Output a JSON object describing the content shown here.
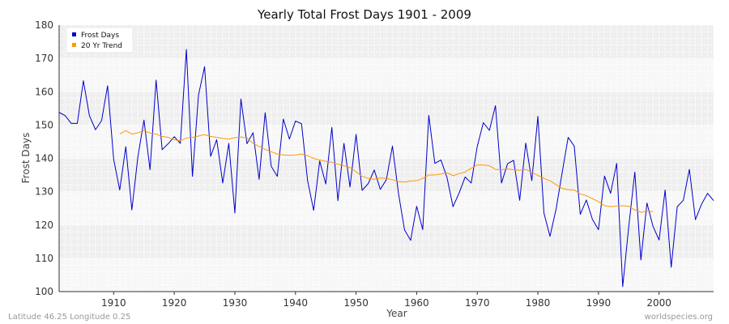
{
  "chart_data": {
    "type": "line",
    "title": "Yearly Total Frost Days 1901 - 2009",
    "xlabel": "Year",
    "ylabel": "Frost Days",
    "xlim": [
      1901,
      2009
    ],
    "ylim": [
      100,
      180
    ],
    "x_ticks": [
      1910,
      1920,
      1930,
      1940,
      1950,
      1960,
      1970,
      1980,
      1990,
      2000
    ],
    "y_ticks": [
      100,
      110,
      120,
      130,
      140,
      150,
      160,
      170,
      180
    ],
    "grid": true,
    "legend_position": "top-left",
    "series": [
      {
        "name": "Frost Days",
        "color": "#0000cc",
        "x_start": 1901,
        "values": [
          153.8,
          152.8,
          150.5,
          150.5,
          163.3,
          152.8,
          148.6,
          151.3,
          161.8,
          139.7,
          130.5,
          143.5,
          124.5,
          140.5,
          151.5,
          136.6,
          163.5,
          142.6,
          144.4,
          146.5,
          144.5,
          172.7,
          134.6,
          159.0,
          167.5,
          140.6,
          145.6,
          132.6,
          144.5,
          123.6,
          157.8,
          144.4,
          147.7,
          133.7,
          153.7,
          137.6,
          134.6,
          151.8,
          145.8,
          151.2,
          150.4,
          133.3,
          124.4,
          139.2,
          132.3,
          149.3,
          127.3,
          144.5,
          131.4,
          147.2,
          130.4,
          132.4,
          136.5,
          130.7,
          133.6,
          143.7,
          129.5,
          118.5,
          115.4,
          125.6,
          118.6,
          152.9,
          138.5,
          139.5,
          134.3,
          125.5,
          129.6,
          134.4,
          132.6,
          143.6,
          150.7,
          148.4,
          155.8,
          132.6,
          138.4,
          139.4,
          127.4,
          144.6,
          133.3,
          152.6,
          123.6,
          116.6,
          124.7,
          135.6,
          146.3,
          143.7,
          123.2,
          127.5,
          121.7,
          118.6,
          134.7,
          129.5,
          138.5,
          101.5,
          119.6,
          135.9,
          109.5,
          126.6,
          119.6,
          115.5,
          130.5,
          107.3,
          125.5,
          127.4,
          136.7,
          121.6,
          126.2,
          129.5,
          127.3
        ]
      },
      {
        "name": "20 Yr Trend",
        "color": "#ff9900",
        "x_start": 1911,
        "values": [
          147.3,
          148.3,
          147.3,
          147.7,
          148.3,
          147.6,
          147.3,
          146.6,
          146.3,
          145.6,
          145.3,
          146.1,
          146.3,
          146.7,
          147.1,
          146.6,
          146.3,
          146.0,
          145.8,
          146.2,
          146.4,
          146.1,
          144.5,
          143.6,
          142.7,
          142.0,
          141.3,
          141.0,
          140.9,
          141.0,
          141.3,
          140.8,
          140.0,
          139.5,
          139.1,
          138.8,
          138.2,
          137.8,
          137.2,
          136.0,
          134.6,
          134.0,
          133.7,
          134.1,
          134.0,
          133.6,
          133.0,
          132.9,
          133.2,
          133.3,
          134.0,
          135.0,
          135.0,
          135.3,
          135.7,
          134.8,
          135.4,
          135.9,
          137.0,
          138.0,
          138.0,
          137.8,
          136.7,
          136.6,
          136.8,
          136.6,
          136.4,
          136.7,
          135.8,
          134.9,
          134.0,
          133.3,
          132.1,
          131.0,
          130.6,
          130.5,
          129.3,
          128.8,
          127.9,
          127.0,
          125.8,
          125.5,
          125.7,
          125.8,
          125.6,
          124.5,
          123.8,
          124.2,
          124.0
        ]
      }
    ]
  },
  "footer": {
    "left": "Latitude 46.25 Longitude 0.25",
    "right": "worldspecies.org"
  },
  "colors": {
    "band_dark": "#efefef",
    "band_light": "#f7f7f7",
    "grid": "#ffffff"
  }
}
